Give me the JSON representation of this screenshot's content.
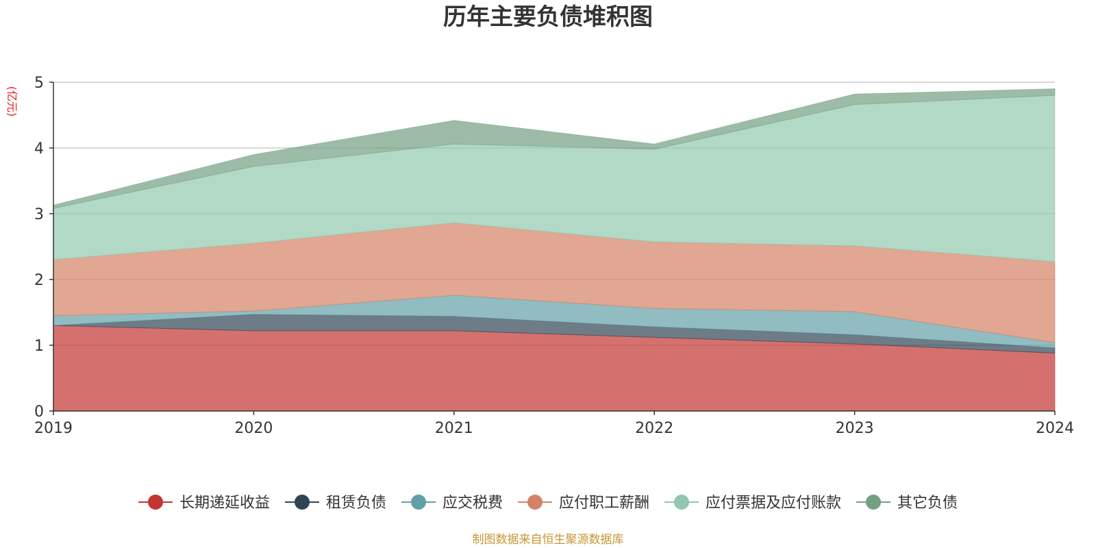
{
  "chart_data": {
    "type": "area",
    "stacked": true,
    "title": "历年主要负债堆积图",
    "unit_label": "(亿元)",
    "xlabel": "",
    "ylabel": "",
    "x": [
      "2019",
      "2020",
      "2021",
      "2022",
      "2023",
      "2024"
    ],
    "ylim": [
      0,
      5
    ],
    "yticks": [
      "0",
      "1",
      "2",
      "3",
      "4",
      "5"
    ],
    "grid": true,
    "legend_position": "bottom",
    "series": [
      {
        "name": "长期递延收益",
        "color": "#c23531",
        "values": [
          1.3,
          1.22,
          1.22,
          1.12,
          1.02,
          0.88
        ]
      },
      {
        "name": "租赁负债",
        "color": "#2f4554",
        "values": [
          0.0,
          0.25,
          0.22,
          0.16,
          0.14,
          0.08
        ]
      },
      {
        "name": "应交税费",
        "color": "#61a0a8",
        "values": [
          0.15,
          0.05,
          0.32,
          0.28,
          0.35,
          0.08
        ]
      },
      {
        "name": "应付职工薪酬",
        "color": "#d48265",
        "values": [
          0.85,
          1.03,
          1.1,
          1.01,
          1.0,
          1.23
        ]
      },
      {
        "name": "应付票据及应付账款",
        "color": "#91c7ae",
        "values": [
          0.78,
          1.17,
          1.2,
          1.41,
          2.15,
          2.53
        ]
      },
      {
        "name": "其它负债",
        "color": "#749f83",
        "values": [
          0.05,
          0.18,
          0.36,
          0.08,
          0.16,
          0.1
        ]
      }
    ],
    "source_note": "制图数据来自恒生聚源数据库"
  }
}
